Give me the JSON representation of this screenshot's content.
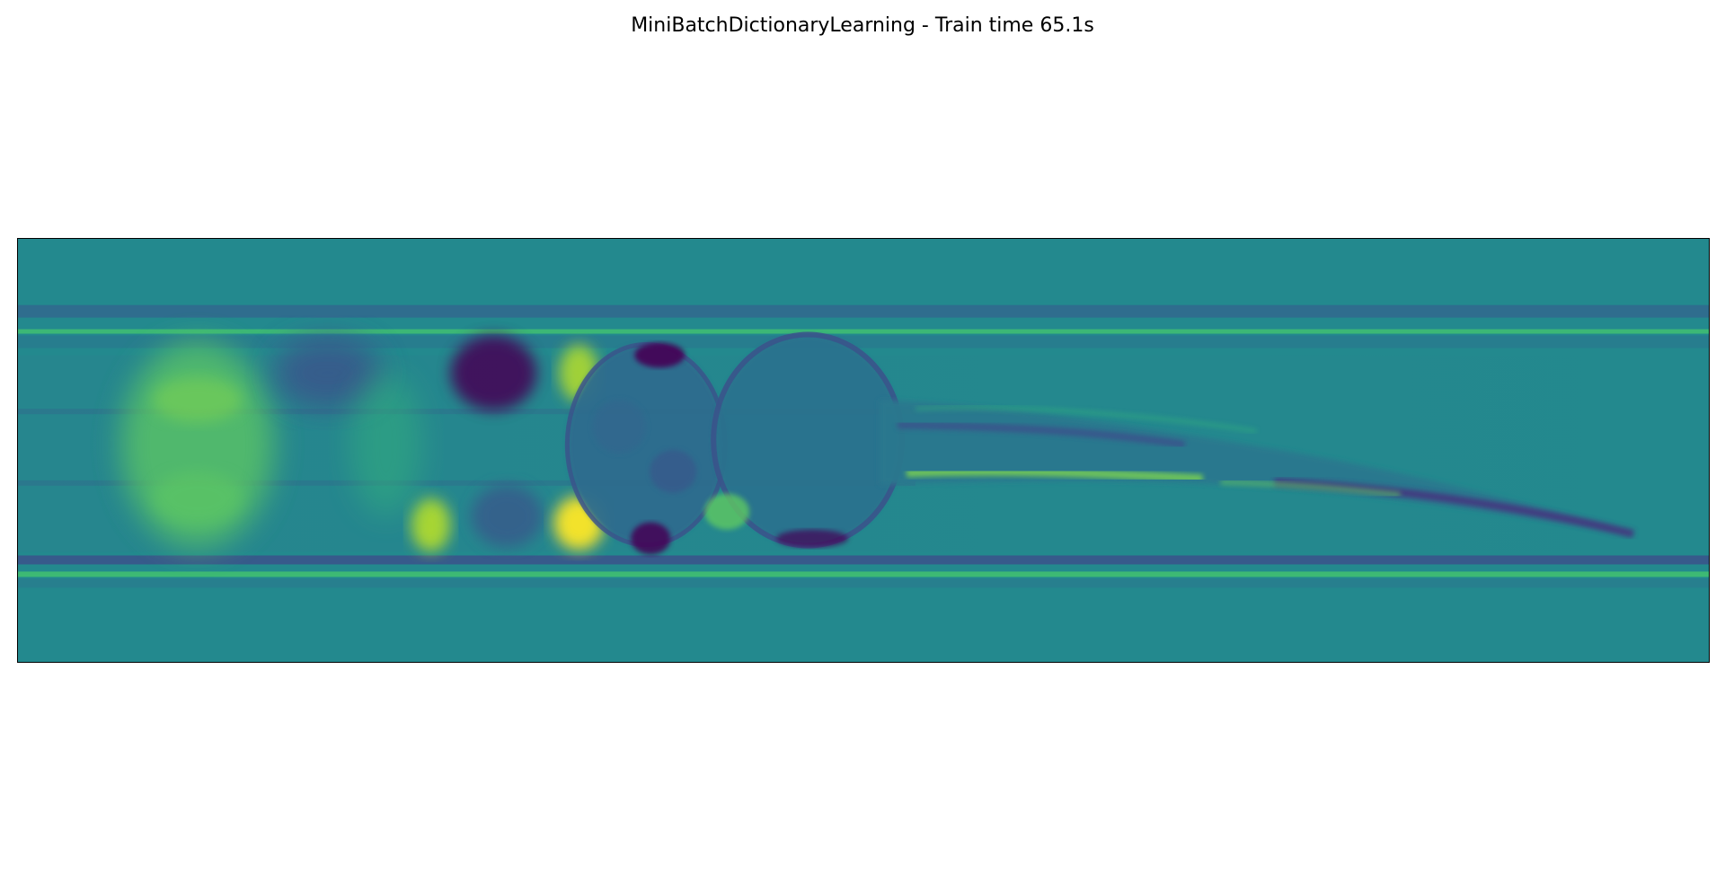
{
  "figure": {
    "title": "MiniBatchDictionaryLearning - Train time 65.1s"
  },
  "image": {
    "subject": "zebrafish-larva",
    "colormap": "viridis",
    "colors": {
      "background": "#23898e",
      "dark": "#440154",
      "mid_dark": "#3b528b",
      "mid": "#21918c",
      "light": "#5ec962",
      "bright": "#fde725"
    }
  }
}
